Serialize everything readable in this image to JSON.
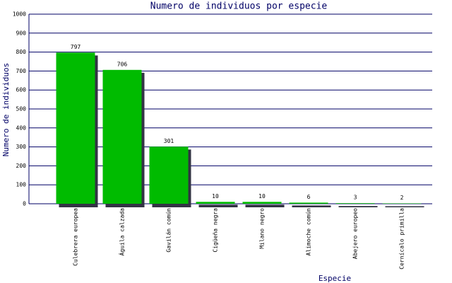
{
  "chart_data": {
    "type": "bar",
    "title": "Numero de individuos por especie",
    "x_label": "Especie",
    "y_label": "Numero de individuos",
    "categories": [
      "Culebrera europea",
      "Águila calzada",
      "Gavilán común",
      "Cigüeña negra",
      "Milano negro",
      "Alimoche común",
      "Abejero europeo",
      "Cernícalo primilla"
    ],
    "values": [
      797,
      706,
      301,
      10,
      10,
      6,
      3,
      2
    ],
    "color": "#00bb00",
    "ylim": [
      0,
      1000
    ],
    "yticks": [
      0,
      100,
      200,
      300,
      400,
      500,
      600,
      700,
      800,
      900,
      1000
    ],
    "grid": true
  }
}
